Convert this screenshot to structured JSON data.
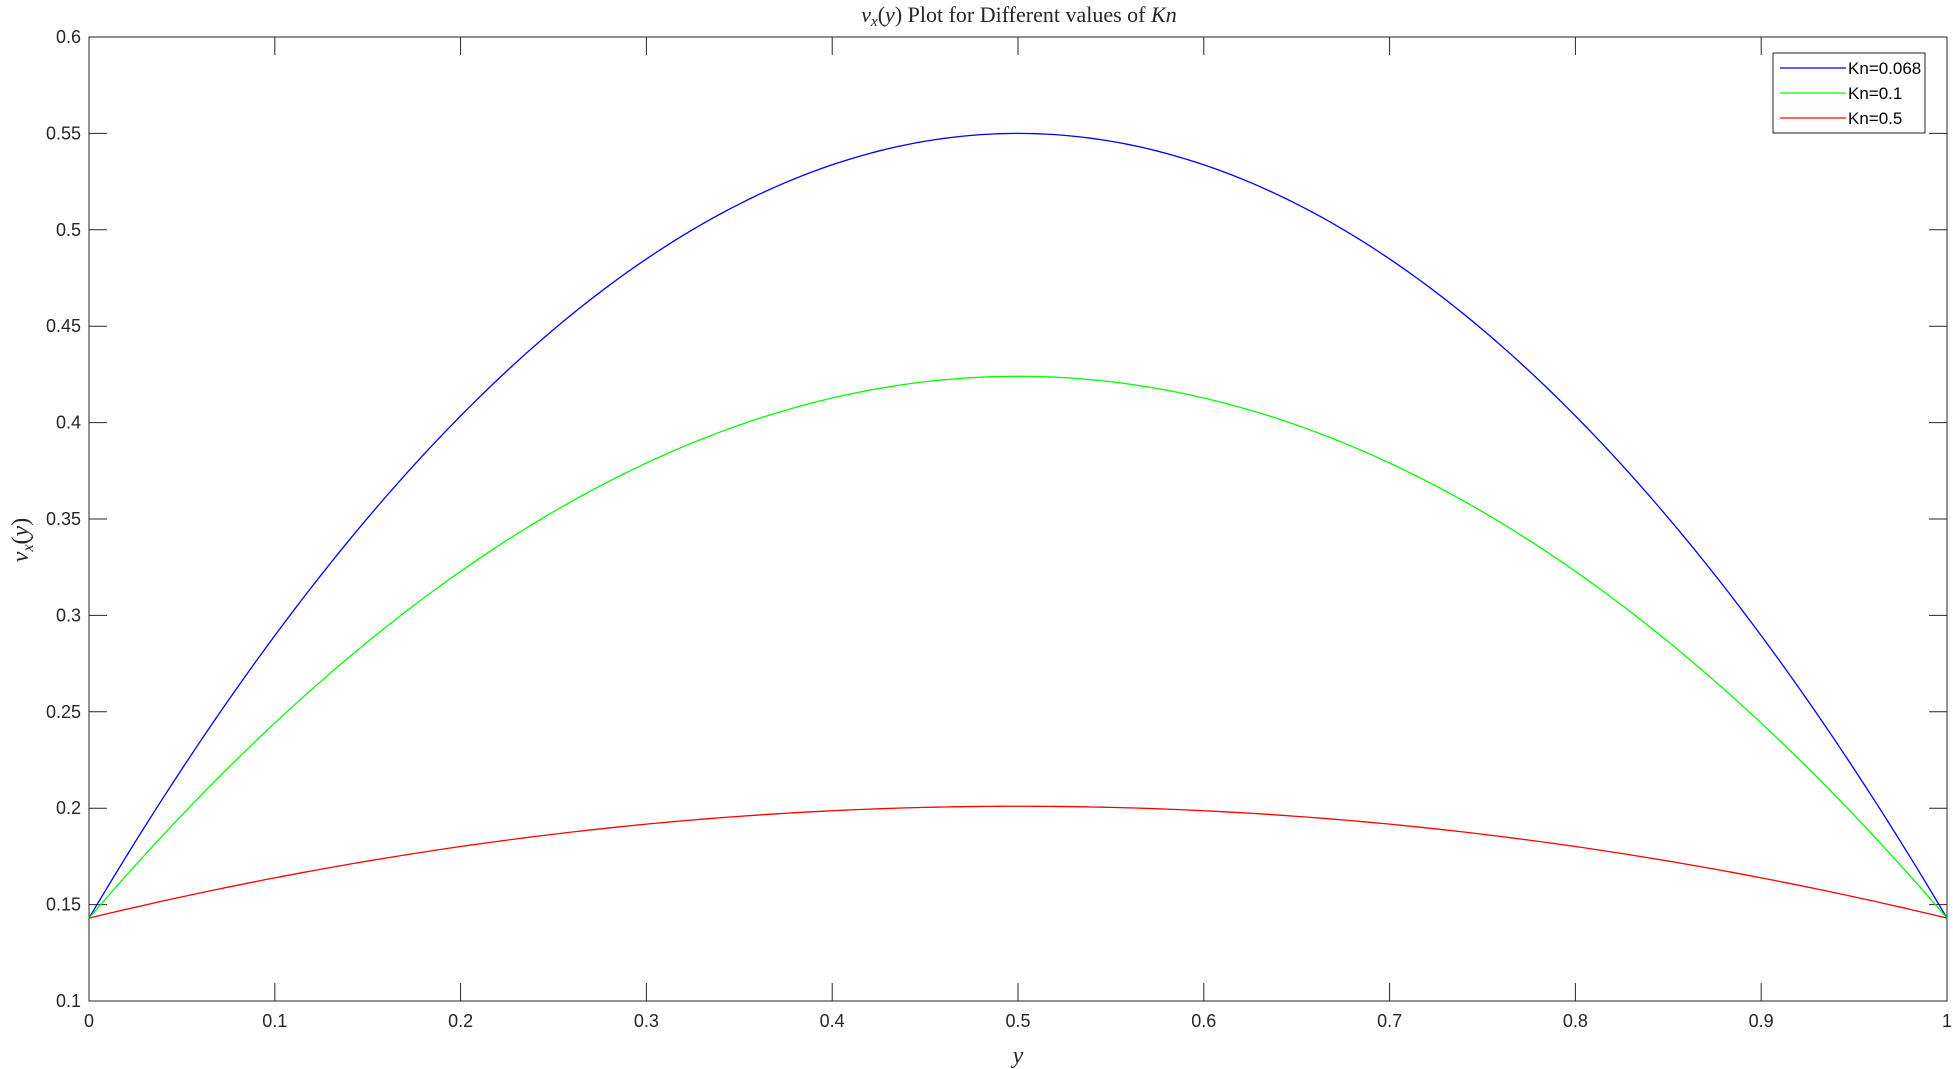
{
  "chart_data": {
    "type": "line",
    "title": "v_x(y) Plot for Different values of Kn",
    "xlabel": "y",
    "ylabel": "v_x(y)",
    "xlim": [
      0,
      1
    ],
    "ylim": [
      0.1,
      0.6
    ],
    "xticks": [
      0,
      0.1,
      0.2,
      0.3,
      0.4,
      0.5,
      0.6,
      0.7,
      0.8,
      0.9,
      1
    ],
    "xtick_labels": [
      "0",
      "0.1",
      "0.2",
      "0.3",
      "0.4",
      "0.5",
      "0.6",
      "0.7",
      "0.8",
      "0.9",
      "1"
    ],
    "yticks": [
      0.1,
      0.15,
      0.2,
      0.25,
      0.3,
      0.35,
      0.4,
      0.45,
      0.5,
      0.55,
      0.6
    ],
    "ytick_labels": [
      "0.1",
      "0.15",
      "0.2",
      "0.25",
      "0.3",
      "0.35",
      "0.4",
      "0.45",
      "0.5",
      "0.55",
      "0.6"
    ],
    "grid": false,
    "legend_position": "top-right",
    "x": [
      0,
      0.1,
      0.2,
      0.3,
      0.4,
      0.5,
      0.6,
      0.7,
      0.8,
      0.9,
      1
    ],
    "series": [
      {
        "name": "Kn=0.068",
        "color": "#0000ff",
        "values": [
          0.143,
          0.292,
          0.408,
          0.49,
          0.534,
          0.55,
          0.534,
          0.49,
          0.408,
          0.292,
          0.143
        ]
      },
      {
        "name": "Kn=0.1",
        "color": "#00ff00",
        "values": [
          0.143,
          0.246,
          0.327,
          0.384,
          0.413,
          0.424,
          0.413,
          0.384,
          0.327,
          0.246,
          0.143
        ]
      },
      {
        "name": "Kn=0.5",
        "color": "#ff0000",
        "values": [
          0.143,
          0.165,
          0.181,
          0.193,
          0.199,
          0.201,
          0.199,
          0.193,
          0.181,
          0.165,
          0.143
        ]
      }
    ]
  }
}
